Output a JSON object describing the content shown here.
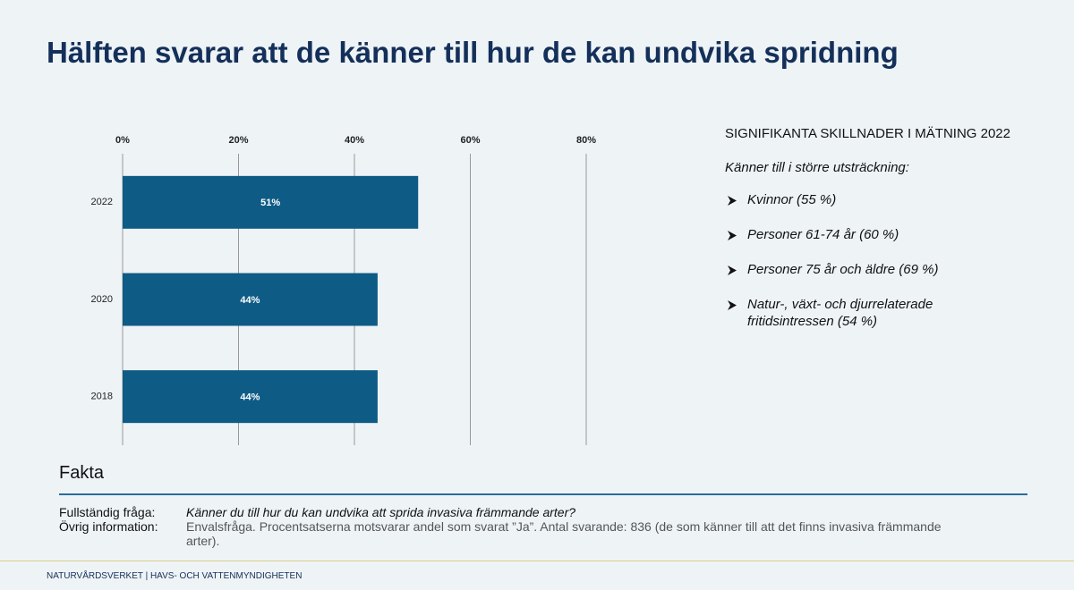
{
  "title": "Hälften svarar att de känner till hur de kan undvika spridning",
  "chart_data": {
    "type": "hbar",
    "categories": [
      "2022",
      "2020",
      "2018"
    ],
    "values": [
      51,
      44,
      44
    ],
    "value_labels": [
      "51%",
      "44%",
      "44%"
    ],
    "color": "#0e5b86",
    "xlim": [
      0,
      80
    ],
    "xticks": [
      {
        "value": 0,
        "label": "0%"
      },
      {
        "value": 20,
        "label": "20%"
      },
      {
        "value": 40,
        "label": "40%"
      },
      {
        "value": 60,
        "label": "60%"
      },
      {
        "value": 80,
        "label": "80%"
      }
    ],
    "grid": true
  },
  "side_panel": {
    "heading": "SIGNIFIKANTA SKILLNADER I MÄTNING 2022",
    "subheading": "Känner till i större utsträckning:",
    "items": [
      "Kvinnor (55 %)",
      "Personer 61-74 år (60 %)",
      "Personer 75 år och äldre (69 %)",
      "Natur-, växt- och djurrelaterade fritidsintressen (54 %)"
    ]
  },
  "facts": {
    "heading": "Fakta",
    "rows": [
      {
        "label": "Fullständig fråga:",
        "text": "Känner du till hur du kan undvika att sprida invasiva främmande arter?"
      },
      {
        "label": "Övrig information:",
        "text": "Envalsfråga. Procentsatserna motsvarar andel som svarat ”Ja”. Antal svarande: 836 (de som känner till att det finns invasiva främmande arter)."
      }
    ]
  },
  "footer": "NATURVÅRDSVERKET | HAVS- OCH VATTENMYNDIGHETEN"
}
